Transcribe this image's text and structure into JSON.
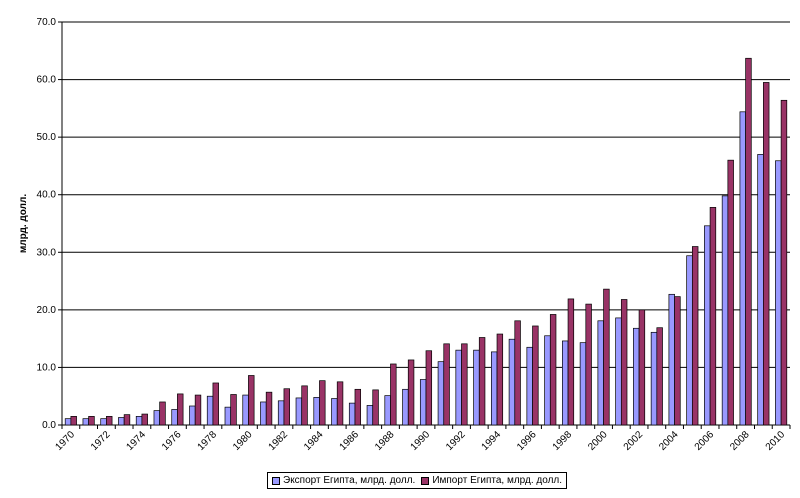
{
  "chart_data": {
    "type": "bar",
    "title": "",
    "xlabel": "",
    "ylabel": "млрд. долл.",
    "ylim": [
      0,
      70
    ],
    "ytick_step": 10,
    "grid": true,
    "legend_position": "bottom",
    "categories": [
      1970,
      1971,
      1972,
      1973,
      1974,
      1975,
      1976,
      1977,
      1978,
      1979,
      1980,
      1981,
      1982,
      1983,
      1984,
      1985,
      1986,
      1987,
      1988,
      1989,
      1990,
      1991,
      1992,
      1993,
      1994,
      1995,
      1996,
      1997,
      1998,
      1999,
      2000,
      2001,
      2002,
      2003,
      2004,
      2005,
      2006,
      2007,
      2008,
      2009,
      2010
    ],
    "series": [
      {
        "name": "Экспорт Египта, млрд. долл.",
        "color": "#9999ff",
        "values": [
          1.1,
          1.1,
          1.1,
          1.3,
          1.5,
          2.5,
          2.7,
          3.3,
          5.0,
          3.1,
          5.2,
          4.0,
          4.2,
          4.7,
          4.8,
          4.6,
          3.8,
          3.4,
          5.1,
          6.2,
          7.9,
          11.0,
          13.0,
          13.0,
          12.7,
          14.9,
          13.5,
          15.5,
          14.6,
          14.3,
          18.1,
          18.6,
          16.8,
          16.1,
          22.7,
          29.4,
          34.6,
          39.8,
          54.4,
          47.0,
          45.9
        ]
      },
      {
        "name": "Импорт Египта, млрд. долл.",
        "color": "#993366",
        "values": [
          1.5,
          1.5,
          1.5,
          1.8,
          1.9,
          4.0,
          5.4,
          5.2,
          7.3,
          5.3,
          8.6,
          5.7,
          6.3,
          6.8,
          7.7,
          7.5,
          6.2,
          6.1,
          10.6,
          11.3,
          12.9,
          14.1,
          14.1,
          15.2,
          15.8,
          18.1,
          17.2,
          19.2,
          21.9,
          21.0,
          23.6,
          21.8,
          20.0,
          16.9,
          22.3,
          31.0,
          37.8,
          46.0,
          63.7,
          59.5,
          56.4
        ]
      }
    ]
  }
}
